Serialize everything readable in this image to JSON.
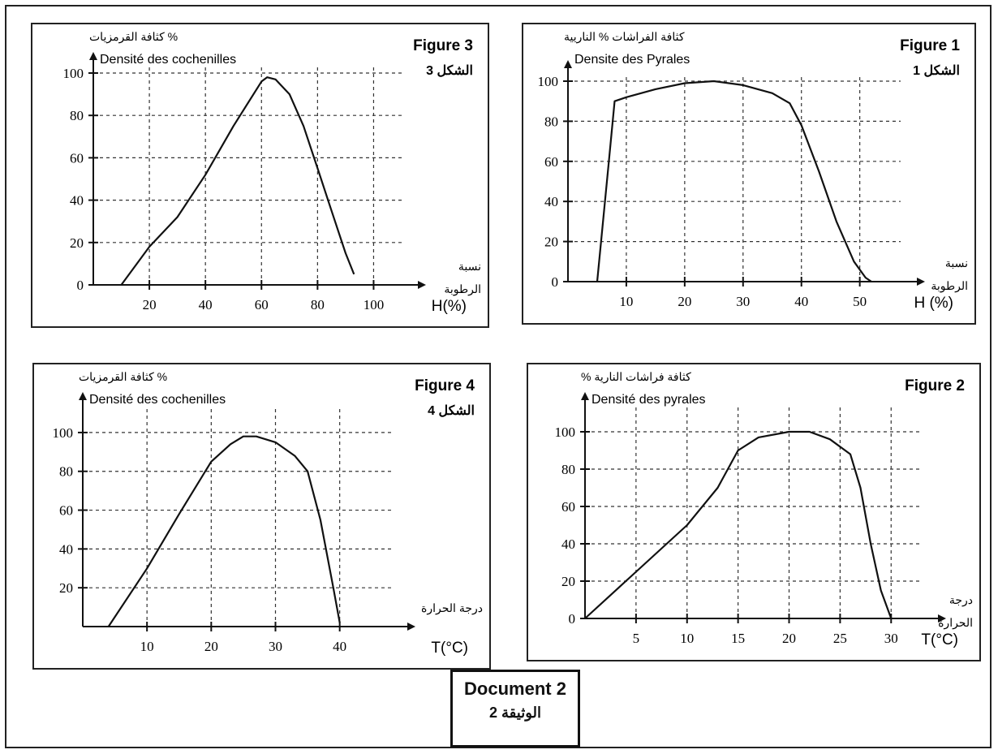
{
  "document": {
    "label_fr": "Document 2",
    "label_ar": "الوثيقة 2"
  },
  "chart_data": [
    {
      "id": "fig3",
      "type": "line",
      "figure_fr": "Figure 3",
      "figure_ar": "الشكل 3",
      "ylabel_ar": "كثافة القرمزيات %",
      "ylabel_fr": "Densité des cochenilles",
      "xlabel_ar": [
        "نسبة",
        "الرطوبة"
      ],
      "xlabel": "H(%)",
      "xticks": [
        20,
        40,
        60,
        80,
        100
      ],
      "yticks": [
        0,
        20,
        40,
        60,
        80,
        100
      ],
      "xlim": [
        0,
        110
      ],
      "ylim": [
        0,
        100
      ],
      "grid": true,
      "x": [
        10,
        20,
        30,
        40,
        50,
        60,
        62,
        65,
        70,
        75,
        80,
        85,
        90,
        93
      ],
      "y": [
        0,
        18,
        32,
        52,
        75,
        96,
        98,
        97,
        90,
        75,
        55,
        35,
        15,
        5
      ]
    },
    {
      "id": "fig1",
      "type": "line",
      "figure_fr": "Figure 1",
      "figure_ar": "الشكل 1",
      "ylabel_fr": "Densite des Pyrales",
      "ylabel_ar": "كثافة الفراشات % الناريية",
      "xlabel_ar": [
        "نسبة",
        "الرطوبة"
      ],
      "xlabel": "H (%)",
      "xticks": [
        10,
        20,
        30,
        40,
        50
      ],
      "yticks": [
        0,
        20,
        40,
        60,
        80,
        100
      ],
      "xlim": [
        0,
        57
      ],
      "ylim": [
        0,
        100
      ],
      "grid": true,
      "x": [
        5,
        7,
        8,
        10,
        15,
        20,
        25,
        30,
        35,
        38,
        40,
        43,
        46,
        49,
        51,
        52
      ],
      "y": [
        0,
        60,
        90,
        92,
        96,
        99,
        100,
        98,
        94,
        89,
        78,
        55,
        30,
        10,
        2,
        0
      ]
    },
    {
      "id": "fig4",
      "type": "line",
      "figure_fr": "Figure 4",
      "figure_ar": "الشكل 4",
      "ylabel_ar": "كثافة القرمزيات %",
      "ylabel_fr": "Densité des cochenilles",
      "xlabel_ar": [
        "درجة الحرارة"
      ],
      "xlabel": "T(°C)",
      "xticks": [
        10,
        20,
        30,
        40
      ],
      "yticks": [
        20,
        40,
        60,
        80,
        100
      ],
      "xlim": [
        0,
        48
      ],
      "ylim": [
        0,
        110
      ],
      "grid": true,
      "x": [
        4,
        10,
        15,
        20,
        23,
        25,
        27,
        30,
        33,
        35,
        37,
        39,
        40
      ],
      "y": [
        0,
        30,
        58,
        85,
        94,
        98,
        98,
        95,
        88,
        80,
        55,
        20,
        2
      ]
    },
    {
      "id": "fig2",
      "type": "line",
      "figure_fr": "Figure 2",
      "figure_ar": "",
      "ylabel_ar": "% كثافة فراشات النارية",
      "ylabel_fr": "Densité des pyrales",
      "xlabel_ar": [
        "درجة",
        "الحرارة"
      ],
      "xlabel": "T(°C)",
      "xticks": [
        5,
        10,
        15,
        20,
        25,
        30
      ],
      "yticks": [
        0,
        20,
        40,
        60,
        80,
        100
      ],
      "xlim": [
        0,
        33
      ],
      "ylim": [
        0,
        110
      ],
      "grid": true,
      "x": [
        0,
        5,
        10,
        13,
        15,
        17,
        20,
        22,
        24,
        26,
        27,
        28,
        29,
        30
      ],
      "y": [
        0,
        25,
        50,
        70,
        90,
        97,
        100,
        100,
        96,
        88,
        70,
        40,
        15,
        0
      ]
    }
  ]
}
